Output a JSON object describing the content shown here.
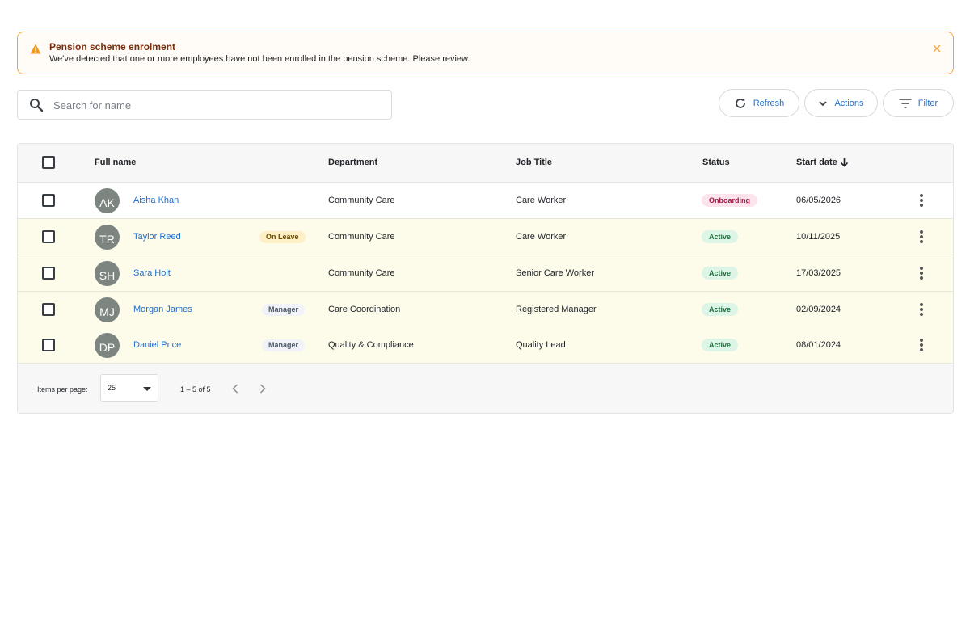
{
  "alert": {
    "title": "Pension scheme enrolment",
    "message": "We've detected that one or more employees have not been enrolled in the pension scheme. Please review."
  },
  "search": {
    "placeholder": "Search for name"
  },
  "toolbar": {
    "refresh_label": "Refresh",
    "actions_label": "Actions",
    "filter_label": "Filter"
  },
  "table": {
    "headers": {
      "full_name": "Full name",
      "department": "Department",
      "job_title": "Job Title",
      "status": "Status",
      "start_date": "Start date"
    },
    "rows": [
      {
        "initials": "AK",
        "name": "Aisha Khan",
        "tag": "",
        "department": "Community Care",
        "job_title": "Care Worker",
        "status": "Onboarding",
        "start_date": "06/05/2026"
      },
      {
        "initials": "TR",
        "name": "Taylor Reed",
        "tag": "On Leave",
        "department": "Community Care",
        "job_title": "Care Worker",
        "status": "Active",
        "start_date": "10/11/2025"
      },
      {
        "initials": "SH",
        "name": "Sara Holt",
        "tag": "",
        "department": "Community Care",
        "job_title": "Senior Care Worker",
        "status": "Active",
        "start_date": "17/03/2025"
      },
      {
        "initials": "MJ",
        "name": "Morgan James",
        "tag": "Manager",
        "department": "Care Coordination",
        "job_title": "Registered Manager",
        "status": "Active",
        "start_date": "02/09/2024"
      },
      {
        "initials": "DP",
        "name": "Daniel Price",
        "tag": "Manager",
        "department": "Quality & Compliance",
        "job_title": "Quality Lead",
        "status": "Active",
        "start_date": "08/01/2024"
      }
    ]
  },
  "pagination": {
    "items_per_page_label": "Items per page:",
    "items_per_page_value": "25",
    "range": "1 – 5 of 5"
  },
  "colors": {
    "alert_border": "#f2a33a",
    "alert_title": "#7a2e0e",
    "link": "#1f6fd1",
    "row_highlight": "#fdfbea",
    "onboarding": "#a0164a",
    "active": "#1f6f3f"
  },
  "icons": {
    "alert": "warning-icon",
    "close": "close-icon",
    "search": "search-icon",
    "refresh": "refresh-icon",
    "actions": "chevron-down-icon",
    "filter": "filter-icon",
    "sort": "arrow-down-icon",
    "row_menu": "kebab-icon"
  }
}
